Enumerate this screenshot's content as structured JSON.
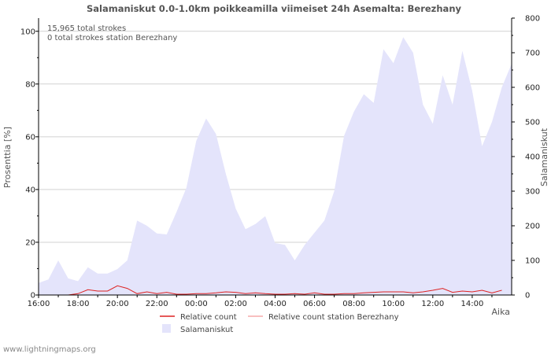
{
  "chart_data": {
    "type": "area",
    "title": "Salamaniskut 0.0-1.0km poikkeamilla viimeiset 24h Asemalta: Berezhany",
    "xlabel": "Aika",
    "ylabel_left": "Prosenttia   [%]",
    "ylabel_right": "Salamaniskut",
    "ylim_left": [
      0,
      105
    ],
    "ylim_right": [
      0,
      800
    ],
    "yticks_left": [
      0,
      20,
      40,
      60,
      80,
      100
    ],
    "yticks_right": [
      0,
      100,
      200,
      300,
      400,
      500,
      600,
      700,
      800
    ],
    "x_ticks": [
      "16:00",
      "18:00",
      "20:00",
      "22:00",
      "00:00",
      "02:00",
      "04:00",
      "06:00",
      "08:00",
      "10:00",
      "12:00",
      "14:00"
    ],
    "x_hours": [
      0,
      0.5,
      1,
      1.5,
      2,
      2.5,
      3,
      3.5,
      4,
      4.5,
      5,
      5.5,
      6,
      6.5,
      7,
      7.5,
      8,
      8.5,
      9,
      9.5,
      10,
      10.5,
      11,
      11.5,
      12,
      12.5,
      13,
      13.5,
      14,
      14.5,
      15,
      15.5,
      16,
      16.5,
      17,
      17.5,
      18,
      18.5,
      19,
      19.5,
      20,
      20.5,
      21,
      21.5,
      22,
      22.5,
      23,
      23.5
    ],
    "series": [
      {
        "name": "Salamaniskut",
        "axis": "right",
        "color": "#e4e4fb",
        "values": [
          35,
          45,
          100,
          48,
          40,
          80,
          62,
          62,
          75,
          100,
          215,
          200,
          178,
          175,
          240,
          310,
          445,
          510,
          465,
          350,
          250,
          190,
          205,
          228,
          150,
          145,
          100,
          145,
          180,
          215,
          300,
          460,
          530,
          580,
          555,
          710,
          670,
          745,
          700,
          550,
          495,
          635,
          550,
          705,
          590,
          430,
          500,
          600
        ]
      },
      {
        "name": "Relative count",
        "axis": "left",
        "color": "#dd2222",
        "values": [
          0,
          0,
          0,
          0,
          0.5,
          2,
          1.5,
          1.5,
          3.5,
          2.5,
          0.5,
          1.2,
          0.5,
          1,
          0.3,
          0.3,
          0.5,
          0.5,
          0.8,
          1.2,
          1,
          0.5,
          0.8,
          0.5,
          0.3,
          0.3,
          0.5,
          0.3,
          0.8,
          0.3,
          0.3,
          0.5,
          0.5,
          0.8,
          1,
          1.2,
          1.2,
          1.2,
          0.8,
          1.2,
          1.8,
          2.5,
          1,
          1.5,
          1.2,
          1.8,
          0.8,
          1.8
        ]
      },
      {
        "name": "Relative count station Berezhany",
        "axis": "left",
        "color": "#f5aaaa",
        "values": [
          0,
          0,
          0,
          0,
          0,
          0,
          0,
          0,
          0,
          0,
          0,
          0,
          0,
          0,
          0,
          0,
          0,
          0,
          0,
          0,
          0,
          0,
          0,
          0,
          0,
          0,
          0,
          0,
          0,
          0,
          0,
          0,
          0,
          0,
          0,
          0,
          0,
          0,
          0,
          0,
          0,
          0,
          0,
          0,
          0,
          0,
          0,
          0
        ]
      }
    ],
    "annotations": [
      "15,965 total strokes",
      "0 total strokes station Berezhany"
    ],
    "legend": [
      "Relative count",
      "Relative count station Berezhany",
      "Salamaniskut"
    ],
    "grid": true
  },
  "footer": {
    "watermark": "www.lightningmaps.org"
  }
}
